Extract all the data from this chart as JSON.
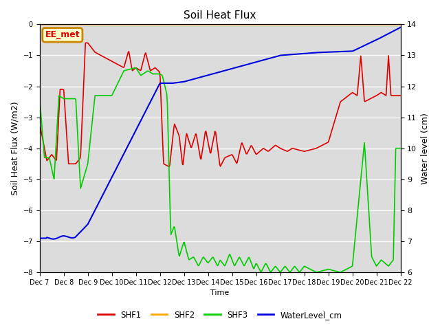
{
  "title": "Soil Heat Flux",
  "ylabel_left": "Soil Heat Flux (W/m2)",
  "ylabel_right": "Water level (cm)",
  "xlabel": "Time",
  "ylim_left": [
    -8.0,
    0.0
  ],
  "ylim_right": [
    6.0,
    14.0
  ],
  "bg_color": "#dcdcdc",
  "annotation_text": "EE_met",
  "annotation_bg": "#ffffcc",
  "annotation_border": "#cc8800",
  "shf2_color": "#ffa500",
  "shf1_color": "#dd0000",
  "shf3_color": "#00cc00",
  "water_color": "#0000dd",
  "legend_entries": [
    "SHF1",
    "SHF2",
    "SHF3",
    "WaterLevel_cm"
  ],
  "yticks_left": [
    0.0,
    -1.0,
    -2.0,
    -3.0,
    -4.0,
    -5.0,
    -6.0,
    -7.0,
    -8.0
  ],
  "yticks_right": [
    14.0,
    13.0,
    12.0,
    11.0,
    10.0,
    9.0,
    8.0,
    7.0,
    6.0
  ],
  "xtick_labels": [
    "Dec 7",
    "Dec 8",
    "Dec 9",
    "Dec 10",
    "Dec 11",
    "Dec 12",
    "Dec 13",
    "Dec 14",
    "Dec 15",
    "Dec 16",
    "Dec 17",
    "Dec 18",
    "Dec 19",
    "Dec 20",
    "Dec 21",
    "Dec 22"
  ]
}
